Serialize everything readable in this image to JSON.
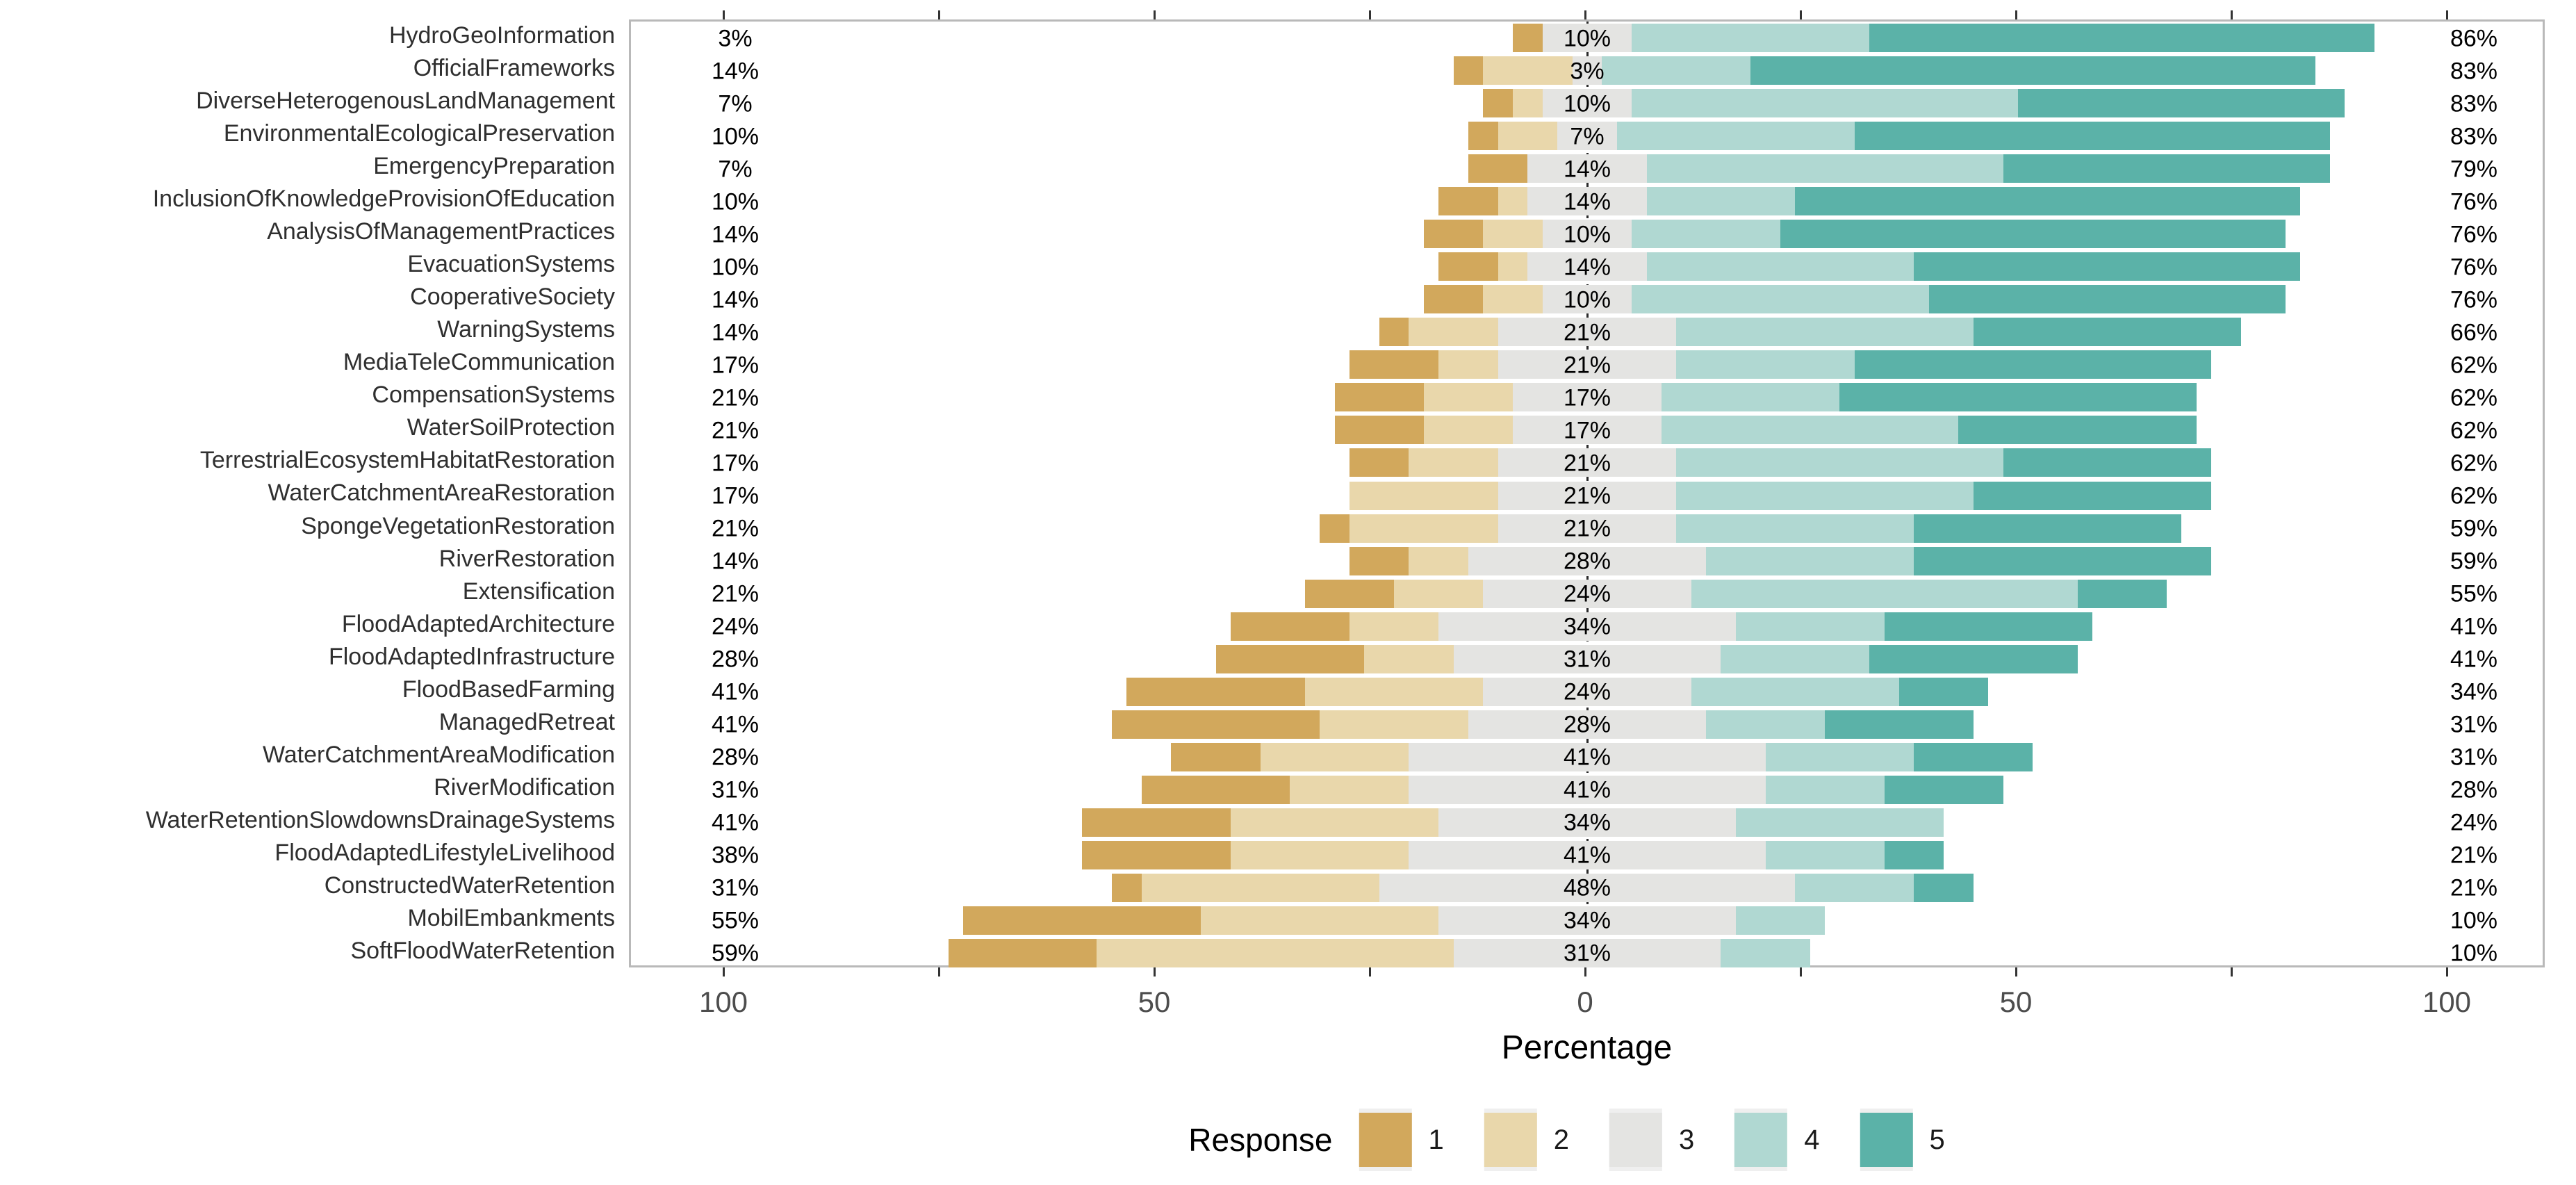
{
  "chart_data": {
    "type": "bar",
    "variant": "diverging-stacked-likert; neutral category split evenly across zero",
    "title": "",
    "xlabel": "Percentage",
    "x_tick_labels": [
      "100",
      "50",
      "0",
      "50",
      "100"
    ],
    "x_tick_values": [
      -100,
      -50,
      0,
      50,
      100
    ],
    "minor_tick_step": 25,
    "xlim": [
      -111,
      111
    ],
    "grid": "off",
    "n_respondents": 29,
    "legend": {
      "title": "Response",
      "position": "bottom-center",
      "entries": [
        {
          "label": "1",
          "color": "#d2a85c"
        },
        {
          "label": "2",
          "color": "#e9d7ab"
        },
        {
          "label": "3",
          "color": "#e4e4e2"
        },
        {
          "label": "4",
          "color": "#b0d8d2"
        },
        {
          "label": "5",
          "color": "#5bb2a8"
        }
      ]
    },
    "rows": [
      {
        "category": "HydroGeoInformation",
        "counts": [
          1,
          0,
          3,
          8,
          17
        ],
        "label_low": "3%",
        "label_mid": "10%",
        "label_high": "86%"
      },
      {
        "category": "OfficialFrameworks",
        "counts": [
          1,
          3,
          1,
          5,
          19
        ],
        "label_low": "14%",
        "label_mid": "3%",
        "label_high": "83%"
      },
      {
        "category": "DiverseHeterogenousLandManagement",
        "counts": [
          1,
          1,
          3,
          13,
          11
        ],
        "label_low": "7%",
        "label_mid": "10%",
        "label_high": "83%"
      },
      {
        "category": "EnvironmentalEcologicalPreservation",
        "counts": [
          1,
          2,
          2,
          8,
          16
        ],
        "label_low": "10%",
        "label_mid": "7%",
        "label_high": "83%"
      },
      {
        "category": "EmergencyPreparation",
        "counts": [
          2,
          0,
          4,
          12,
          11
        ],
        "label_low": "7%",
        "label_mid": "14%",
        "label_high": "79%"
      },
      {
        "category": "InclusionOfKnowledgeProvisionOfEducation",
        "counts": [
          2,
          1,
          4,
          5,
          17
        ],
        "label_low": "10%",
        "label_mid": "14%",
        "label_high": "76%"
      },
      {
        "category": "AnalysisOfManagementPractices",
        "counts": [
          2,
          2,
          3,
          5,
          17
        ],
        "label_low": "14%",
        "label_mid": "10%",
        "label_high": "76%"
      },
      {
        "category": "EvacuationSystems",
        "counts": [
          2,
          1,
          4,
          9,
          13
        ],
        "label_low": "10%",
        "label_mid": "14%",
        "label_high": "76%"
      },
      {
        "category": "CooperativeSociety",
        "counts": [
          2,
          2,
          3,
          10,
          12
        ],
        "label_low": "14%",
        "label_mid": "10%",
        "label_high": "76%"
      },
      {
        "category": "WarningSystems",
        "counts": [
          1,
          3,
          6,
          10,
          9
        ],
        "label_low": "14%",
        "label_mid": "21%",
        "label_high": "66%"
      },
      {
        "category": "MediaTeleCommunication",
        "counts": [
          3,
          2,
          6,
          6,
          12
        ],
        "label_low": "17%",
        "label_mid": "21%",
        "label_high": "62%"
      },
      {
        "category": "CompensationSystems",
        "counts": [
          3,
          3,
          5,
          6,
          12
        ],
        "label_low": "21%",
        "label_mid": "17%",
        "label_high": "62%"
      },
      {
        "category": "WaterSoilProtection",
        "counts": [
          3,
          3,
          5,
          10,
          8
        ],
        "label_low": "21%",
        "label_mid": "17%",
        "label_high": "62%"
      },
      {
        "category": "TerrestrialEcosystemHabitatRestoration",
        "counts": [
          2,
          3,
          6,
          11,
          7
        ],
        "label_low": "17%",
        "label_mid": "21%",
        "label_high": "62%"
      },
      {
        "category": "WaterCatchmentAreaRestoration",
        "counts": [
          0,
          5,
          6,
          10,
          8
        ],
        "label_low": "17%",
        "label_mid": "21%",
        "label_high": "62%"
      },
      {
        "category": "SpongeVegetationRestoration",
        "counts": [
          1,
          5,
          6,
          8,
          9
        ],
        "label_low": "21%",
        "label_mid": "21%",
        "label_high": "59%"
      },
      {
        "category": "RiverRestoration",
        "counts": [
          2,
          2,
          8,
          7,
          10
        ],
        "label_low": "14%",
        "label_mid": "28%",
        "label_high": "59%"
      },
      {
        "category": "Extensification",
        "counts": [
          3,
          3,
          7,
          13,
          3
        ],
        "label_low": "21%",
        "label_mid": "24%",
        "label_high": "55%"
      },
      {
        "category": "FloodAdaptedArchitecture",
        "counts": [
          4,
          3,
          10,
          5,
          7
        ],
        "label_low": "24%",
        "label_mid": "34%",
        "label_high": "41%"
      },
      {
        "category": "FloodAdaptedInfrastructure",
        "counts": [
          5,
          3,
          9,
          5,
          7
        ],
        "label_low": "28%",
        "label_mid": "31%",
        "label_high": "41%"
      },
      {
        "category": "FloodBasedFarming",
        "counts": [
          6,
          6,
          7,
          7,
          3
        ],
        "label_low": "41%",
        "label_mid": "24%",
        "label_high": "34%"
      },
      {
        "category": "ManagedRetreat",
        "counts": [
          7,
          5,
          8,
          4,
          5
        ],
        "label_low": "41%",
        "label_mid": "28%",
        "label_high": "31%"
      },
      {
        "category": "WaterCatchmentAreaModification",
        "counts": [
          3,
          5,
          12,
          5,
          4
        ],
        "label_low": "28%",
        "label_mid": "41%",
        "label_high": "31%"
      },
      {
        "category": "RiverModification",
        "counts": [
          5,
          4,
          12,
          4,
          4
        ],
        "label_low": "31%",
        "label_mid": "41%",
        "label_high": "28%"
      },
      {
        "category": "WaterRetentionSlowdownsDrainageSystems",
        "counts": [
          5,
          7,
          10,
          7,
          0
        ],
        "label_low": "41%",
        "label_mid": "34%",
        "label_high": "24%"
      },
      {
        "category": "FloodAdaptedLifestyleLivelihood",
        "counts": [
          5,
          6,
          12,
          4,
          2
        ],
        "label_low": "38%",
        "label_mid": "41%",
        "label_high": "21%"
      },
      {
        "category": "ConstructedWaterRetention",
        "counts": [
          1,
          8,
          14,
          4,
          2
        ],
        "label_low": "31%",
        "label_mid": "48%",
        "label_high": "21%"
      },
      {
        "category": "MobilEmbankments",
        "counts": [
          8,
          8,
          10,
          3,
          0
        ],
        "label_low": "55%",
        "label_mid": "34%",
        "label_high": "10%"
      },
      {
        "category": "SoftFloodWaterRetention",
        "counts": [
          5,
          12,
          9,
          3,
          0
        ],
        "label_low": "59%",
        "label_mid": "31%",
        "label_high": "10%"
      }
    ]
  }
}
